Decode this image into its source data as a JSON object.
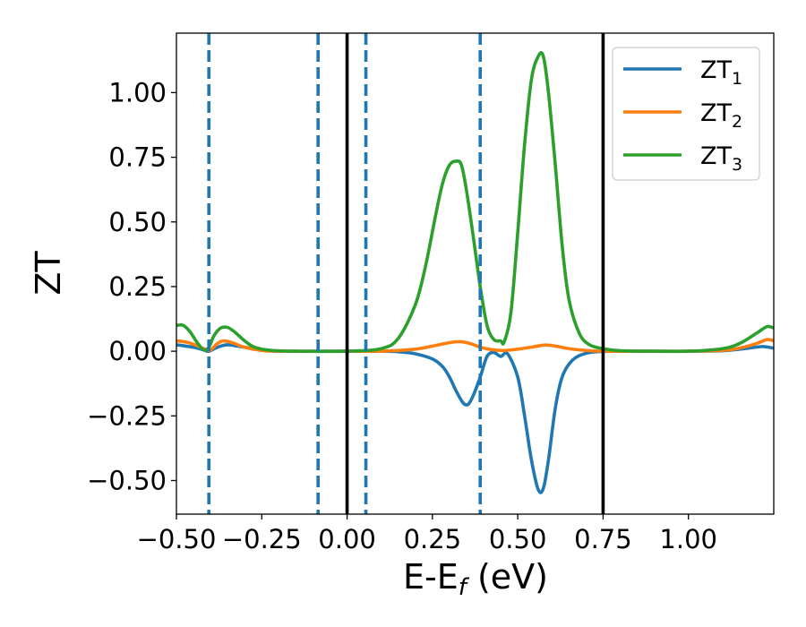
{
  "chart_data": {
    "type": "line",
    "xlabel": "E-E",
    "xlabel_sub": "f",
    "xlabel_unit": " (eV)",
    "ylabel": "ZT",
    "xlim": [
      -0.5,
      1.25
    ],
    "ylim": [
      -0.63,
      1.23
    ],
    "xticks": [
      -0.5,
      -0.25,
      0.0,
      0.25,
      0.5,
      0.75,
      1.0
    ],
    "xtick_labels": [
      "−0.50",
      "−0.25",
      "0.00",
      "0.25",
      "0.50",
      "0.75",
      "1.00"
    ],
    "yticks": [
      -0.5,
      -0.25,
      0.0,
      0.25,
      0.5,
      0.75,
      1.0
    ],
    "ytick_labels": [
      "−0.50",
      "−0.25",
      "0.00",
      "0.25",
      "0.50",
      "0.75",
      "1.00"
    ],
    "grid": false,
    "legend_position": "top-right",
    "vlines_solid": [
      0.0,
      0.75
    ],
    "vlines_dashed": [
      -0.405,
      -0.085,
      0.055,
      0.39
    ],
    "colors": {
      "ZT1": "#1f77b4",
      "ZT2": "#ff7f0e",
      "ZT3": "#2ca02c",
      "vline_solid": "#000000",
      "vline_dashed": "#1f77b4"
    },
    "series": [
      {
        "name": "ZT",
        "name_sub": "1",
        "color": "#1f77b4",
        "x": [
          -0.5,
          -0.45,
          -0.42,
          -0.405,
          -0.38,
          -0.35,
          -0.3,
          -0.25,
          -0.2,
          -0.1,
          0.0,
          0.1,
          0.15,
          0.2,
          0.25,
          0.28,
          0.3,
          0.32,
          0.34,
          0.355,
          0.37,
          0.39,
          0.41,
          0.43,
          0.45,
          0.47,
          0.5,
          0.52,
          0.54,
          0.56,
          0.575,
          0.59,
          0.61,
          0.63,
          0.66,
          0.7,
          0.75,
          0.85,
          1.0,
          1.1,
          1.15,
          1.2,
          1.22,
          1.25
        ],
        "y": [
          0.025,
          0.015,
          0.005,
          0.0,
          0.015,
          0.025,
          0.015,
          0.005,
          0.0,
          0.0,
          0.0,
          0.0,
          -0.002,
          -0.01,
          -0.03,
          -0.06,
          -0.1,
          -0.155,
          -0.2,
          -0.205,
          -0.17,
          -0.1,
          -0.02,
          -0.005,
          -0.02,
          -0.01,
          -0.1,
          -0.25,
          -0.42,
          -0.535,
          -0.53,
          -0.42,
          -0.22,
          -0.1,
          -0.035,
          -0.008,
          -0.001,
          0.0,
          0.0,
          0.002,
          0.008,
          0.016,
          0.018,
          0.012
        ]
      },
      {
        "name": "ZT",
        "name_sub": "2",
        "color": "#ff7f0e",
        "x": [
          -0.5,
          -0.47,
          -0.44,
          -0.42,
          -0.4,
          -0.38,
          -0.36,
          -0.33,
          -0.3,
          -0.25,
          -0.2,
          0.0,
          0.1,
          0.2,
          0.25,
          0.3,
          0.33,
          0.36,
          0.4,
          0.45,
          0.5,
          0.55,
          0.58,
          0.61,
          0.65,
          0.7,
          0.75,
          0.85,
          1.0,
          1.1,
          1.15,
          1.2,
          1.23,
          1.25
        ],
        "y": [
          0.04,
          0.035,
          0.022,
          0.01,
          0.005,
          0.03,
          0.04,
          0.03,
          0.015,
          0.003,
          0.0,
          0.0,
          0.0,
          0.008,
          0.02,
          0.033,
          0.037,
          0.03,
          0.012,
          0.003,
          0.008,
          0.018,
          0.024,
          0.02,
          0.01,
          0.003,
          0.0,
          0.0,
          0.0,
          0.003,
          0.012,
          0.03,
          0.045,
          0.04
        ]
      },
      {
        "name": "ZT",
        "name_sub": "3",
        "color": "#2ca02c",
        "x": [
          -0.5,
          -0.48,
          -0.46,
          -0.44,
          -0.42,
          -0.405,
          -0.39,
          -0.37,
          -0.35,
          -0.33,
          -0.3,
          -0.27,
          -0.22,
          -0.15,
          0.0,
          0.1,
          0.15,
          0.2,
          0.23,
          0.26,
          0.28,
          0.3,
          0.32,
          0.335,
          0.35,
          0.37,
          0.39,
          0.41,
          0.43,
          0.45,
          0.46,
          0.48,
          0.5,
          0.52,
          0.54,
          0.56,
          0.575,
          0.59,
          0.61,
          0.63,
          0.65,
          0.68,
          0.71,
          0.75,
          0.8,
          0.9,
          1.0,
          1.1,
          1.15,
          1.2,
          1.23,
          1.25
        ],
        "y": [
          0.1,
          0.1,
          0.075,
          0.035,
          0.005,
          0.015,
          0.06,
          0.09,
          0.092,
          0.075,
          0.04,
          0.015,
          0.003,
          0.0,
          0.0,
          0.01,
          0.05,
          0.18,
          0.33,
          0.53,
          0.65,
          0.72,
          0.735,
          0.72,
          0.62,
          0.44,
          0.25,
          0.1,
          0.045,
          0.04,
          0.035,
          0.15,
          0.46,
          0.8,
          1.05,
          1.14,
          1.14,
          1.0,
          0.72,
          0.41,
          0.2,
          0.07,
          0.025,
          0.01,
          0.002,
          0.0,
          0.0,
          0.01,
          0.03,
          0.07,
          0.095,
          0.09
        ]
      }
    ]
  }
}
